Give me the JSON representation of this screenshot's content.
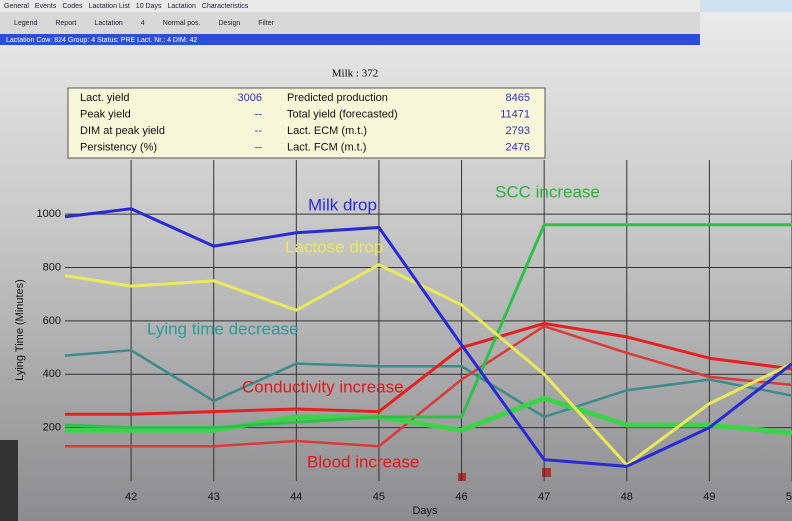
{
  "menu": [
    "General",
    "Events",
    "Codes",
    "Lactation List",
    "10 Days",
    "Lactation",
    "Characteristics"
  ],
  "toolbar": [
    "Legend",
    "Report",
    "Lactation",
    "4",
    "Normal pos.",
    "Design",
    "Filter"
  ],
  "status_bar": "Lactation  Cow: 824  Group: 4  Status: PRE  Lact. Nr.: 4  DIM: 42",
  "info_box": {
    "rows": [
      [
        "Lact. yield",
        "3006",
        "Predicted production",
        "8465"
      ],
      [
        "Peak yield",
        "--",
        "Total yield (forecasted)",
        "11471"
      ],
      [
        "DIM at peak yield",
        "--",
        "Lact. ECM (m.t.)",
        "2793"
      ],
      [
        "Persistency (%)",
        "--",
        "Lact. FCM (m.t.)",
        "2476"
      ]
    ]
  },
  "chart_data": {
    "type": "line",
    "title": "Milk : 372",
    "x_label": "Days",
    "y_label": "Lying Time  (Minutes)",
    "x": [
      41.2,
      42,
      43,
      44,
      45,
      46,
      47,
      48,
      49,
      50
    ],
    "xlim": [
      41.2,
      50
    ],
    "xticks": [
      42,
      43,
      44,
      45,
      46,
      47,
      48,
      49,
      50
    ],
    "ylim": [
      0,
      1480
    ],
    "yticks": [
      200,
      400,
      600,
      800,
      1000
    ],
    "grid": true,
    "series": [
      {
        "color": "#3c8a8a",
        "width": 2.5,
        "values": [
          470,
          490,
          300,
          440,
          430,
          430,
          240,
          340,
          380,
          320
        ]
      },
      {
        "color": "#d83a3a",
        "width": 2.5,
        "values": [
          130,
          130,
          130,
          150,
          130,
          380,
          580,
          480,
          390,
          360
        ]
      },
      {
        "color": "#e42020",
        "width": 3,
        "values": [
          250,
          250,
          260,
          270,
          260,
          500,
          590,
          540,
          460,
          420
        ]
      },
      {
        "color": "#3ed24a",
        "width": 5,
        "values": [
          190,
          190,
          190,
          240,
          240,
          190,
          310,
          210,
          210,
          180
        ]
      },
      {
        "color": "#2fbf4a",
        "width": 3,
        "values": [
          210,
          200,
          200,
          220,
          240,
          240,
          960,
          960,
          960,
          960
        ]
      },
      {
        "color": "#e8ea5c",
        "width": 3,
        "values": [
          770,
          730,
          750,
          640,
          810,
          660,
          400,
          60,
          290,
          440
        ]
      },
      {
        "color": "#2a2ad4",
        "width": 3,
        "values": [
          990,
          1020,
          880,
          930,
          950,
          510,
          80,
          55,
          200,
          440
        ]
      }
    ],
    "annotations": [
      {
        "text": "Milk drop",
        "color": "#2a2ad4"
      },
      {
        "text": "Lactose drop",
        "color": "#e8ea5c"
      },
      {
        "text": "SCC increase",
        "color": "#2fae3a"
      },
      {
        "text": "Lying time decrease",
        "color": "#2c9a9a"
      },
      {
        "text": "Conductivity increase",
        "color": "#e01818"
      },
      {
        "text": "Blood increase",
        "color": "#e01818"
      }
    ]
  }
}
